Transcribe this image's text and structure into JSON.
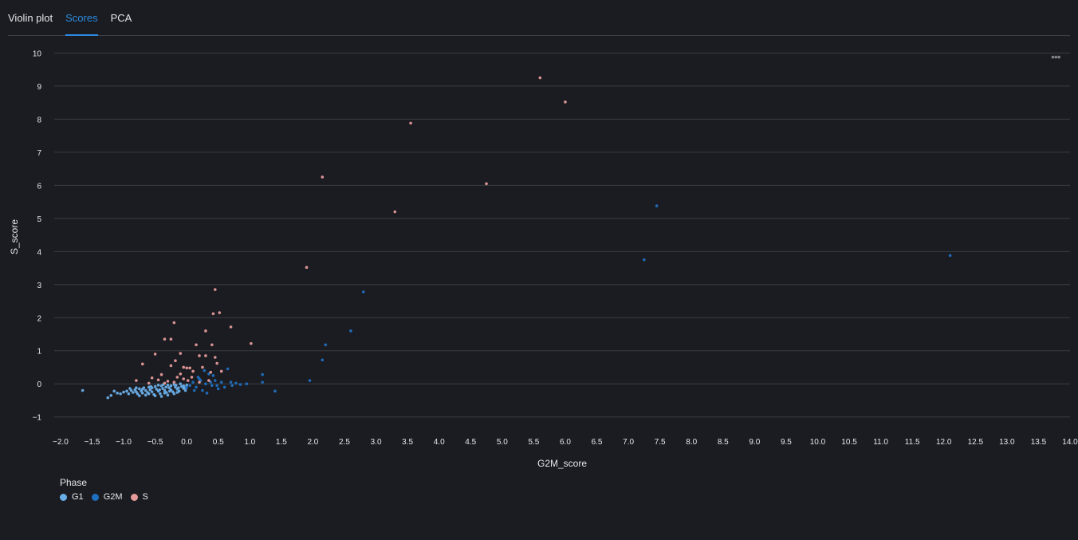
{
  "tabs": [
    {
      "label": "Violin plot",
      "active": false
    },
    {
      "label": "Scores",
      "active": true
    },
    {
      "label": "PCA",
      "active": false
    }
  ],
  "menu_icon": "more-horizontal-icon",
  "colors": {
    "background": "#1b1c21",
    "active_tab": "#2b8be0",
    "grid": "#3a3c44"
  },
  "chart_data": {
    "type": "scatter",
    "title": "",
    "xlabel": "G2M_score",
    "ylabel": "S_score",
    "xlim": [
      -2.1,
      14.0
    ],
    "ylim": [
      -1.2,
      10.3
    ],
    "x_ticks": [
      "−2.0",
      "−1.5",
      "−1.0",
      "−0.5",
      "0.0",
      "0.5",
      "1.0",
      "1.5",
      "2.0",
      "2.5",
      "3.0",
      "3.5",
      "4.0",
      "4.5",
      "5.0",
      "5.5",
      "6.0",
      "6.5",
      "7.0",
      "7.5",
      "8.0",
      "8.5",
      "9.0",
      "9.5",
      "10.0",
      "10.5",
      "11.0",
      "11.5",
      "12.0",
      "12.5",
      "13.0",
      "13.5",
      "14.0"
    ],
    "y_ticks": [
      "−1",
      "0",
      "1",
      "2",
      "3",
      "4",
      "5",
      "6",
      "7",
      "8",
      "9",
      "10"
    ],
    "grid": true,
    "legend_title": "Phase",
    "legend_position": "bottom-left",
    "series": [
      {
        "name": "G1",
        "color": "#6aaee8",
        "points": [
          [
            -1.65,
            -0.2
          ],
          [
            -1.25,
            -0.42
          ],
          [
            -1.2,
            -0.35
          ],
          [
            -1.1,
            -0.28
          ],
          [
            -1.05,
            -0.3
          ],
          [
            -1.0,
            -0.25
          ],
          [
            -0.95,
            -0.22
          ],
          [
            -0.92,
            -0.3
          ],
          [
            -0.88,
            -0.2
          ],
          [
            -0.85,
            -0.26
          ],
          [
            -0.82,
            -0.18
          ],
          [
            -0.8,
            -0.24
          ],
          [
            -0.78,
            -0.3
          ],
          [
            -0.75,
            -0.15
          ],
          [
            -0.72,
            -0.22
          ],
          [
            -0.7,
            -0.28
          ],
          [
            -0.68,
            -0.12
          ],
          [
            -0.65,
            -0.2
          ],
          [
            -0.62,
            -0.26
          ],
          [
            -0.6,
            -0.1
          ],
          [
            -0.58,
            -0.18
          ],
          [
            -0.55,
            -0.24
          ],
          [
            -0.52,
            -0.32
          ],
          [
            -0.5,
            -0.08
          ],
          [
            -0.48,
            -0.16
          ],
          [
            -0.45,
            -0.22
          ],
          [
            -0.42,
            -0.3
          ],
          [
            -0.4,
            -0.06
          ],
          [
            -0.38,
            -0.14
          ],
          [
            -0.35,
            -0.2
          ],
          [
            -0.32,
            -0.26
          ],
          [
            -0.3,
            -0.04
          ],
          [
            -0.28,
            -0.12
          ],
          [
            -0.25,
            -0.18
          ],
          [
            -0.22,
            -0.24
          ],
          [
            -0.2,
            -0.02
          ],
          [
            -0.18,
            -0.1
          ],
          [
            -0.15,
            -0.16
          ],
          [
            -0.12,
            -0.22
          ],
          [
            -0.1,
            0.0
          ],
          [
            -0.08,
            -0.08
          ],
          [
            -0.05,
            -0.14
          ],
          [
            -0.02,
            -0.2
          ],
          [
            0.0,
            -0.04
          ],
          [
            -0.6,
            -0.3
          ],
          [
            -0.55,
            -0.12
          ],
          [
            -0.45,
            -0.04
          ],
          [
            -0.35,
            -0.28
          ],
          [
            -0.25,
            -0.06
          ],
          [
            -0.15,
            -0.26
          ],
          [
            -0.05,
            -0.06
          ],
          [
            -0.4,
            -0.38
          ],
          [
            -0.3,
            -0.34
          ],
          [
            -0.2,
            -0.3
          ],
          [
            -0.5,
            -0.36
          ],
          [
            -0.65,
            -0.34
          ],
          [
            -0.7,
            -0.16
          ],
          [
            -0.8,
            -0.12
          ],
          [
            -0.9,
            -0.14
          ],
          [
            -1.15,
            -0.22
          ],
          [
            -0.75,
            -0.36
          ],
          [
            -0.33,
            -0.1
          ],
          [
            -0.27,
            -0.22
          ],
          [
            -0.13,
            -0.12
          ],
          [
            -0.43,
            -0.18
          ],
          [
            -0.57,
            -0.08
          ],
          [
            -0.37,
            -0.02
          ],
          [
            -0.17,
            -0.04
          ],
          [
            -0.03,
            -0.12
          ]
        ]
      },
      {
        "name": "G2M",
        "color": "#1f6fbf",
        "points": [
          [
            0.05,
            -0.05
          ],
          [
            0.1,
            0.05
          ],
          [
            0.15,
            -0.1
          ],
          [
            0.2,
            0.15
          ],
          [
            0.25,
            -0.2
          ],
          [
            0.3,
            0.0
          ],
          [
            0.35,
            0.3
          ],
          [
            0.4,
            -0.05
          ],
          [
            0.45,
            0.1
          ],
          [
            0.5,
            -0.15
          ],
          [
            0.55,
            0.05
          ],
          [
            0.6,
            -0.1
          ],
          [
            0.65,
            0.45
          ],
          [
            0.7,
            0.05
          ],
          [
            0.72,
            -0.05
          ],
          [
            0.78,
            0.02
          ],
          [
            0.85,
            -0.02
          ],
          [
            0.95,
            0.0
          ],
          [
            1.2,
            0.05
          ],
          [
            1.2,
            0.28
          ],
          [
            1.4,
            -0.22
          ],
          [
            0.0,
            -0.12
          ],
          [
            0.12,
            -0.2
          ],
          [
            0.22,
            0.1
          ],
          [
            0.32,
            -0.28
          ],
          [
            0.42,
            0.25
          ],
          [
            0.48,
            -0.05
          ],
          [
            0.28,
            0.4
          ],
          [
            0.18,
            0.2
          ],
          [
            0.38,
            0.05
          ],
          [
            1.95,
            0.1
          ],
          [
            2.15,
            0.72
          ],
          [
            2.2,
            1.18
          ],
          [
            2.6,
            1.6
          ],
          [
            2.8,
            2.78
          ],
          [
            7.25,
            3.75
          ],
          [
            7.45,
            5.38
          ],
          [
            12.1,
            3.88
          ]
        ]
      },
      {
        "name": "S",
        "color": "#e59a9a",
        "points": [
          [
            -0.7,
            0.6
          ],
          [
            -0.5,
            0.9
          ],
          [
            -0.35,
            1.35
          ],
          [
            -0.25,
            1.35
          ],
          [
            -0.2,
            1.85
          ],
          [
            -0.1,
            0.92
          ],
          [
            -0.05,
            0.5
          ],
          [
            0.0,
            0.48
          ],
          [
            0.05,
            0.48
          ],
          [
            0.15,
            1.18
          ],
          [
            0.2,
            0.85
          ],
          [
            0.25,
            0.5
          ],
          [
            0.3,
            1.6
          ],
          [
            0.3,
            0.85
          ],
          [
            0.38,
            0.35
          ],
          [
            0.4,
            1.18
          ],
          [
            0.42,
            2.12
          ],
          [
            0.45,
            2.85
          ],
          [
            0.45,
            0.8
          ],
          [
            0.48,
            0.62
          ],
          [
            0.52,
            2.15
          ],
          [
            0.55,
            0.38
          ],
          [
            0.7,
            1.72
          ],
          [
            1.02,
            1.22
          ],
          [
            -0.8,
            0.1
          ],
          [
            -0.6,
            0.02
          ],
          [
            -0.45,
            0.12
          ],
          [
            -0.3,
            0.08
          ],
          [
            -0.15,
            0.2
          ],
          [
            -0.05,
            0.15
          ],
          [
            0.08,
            0.2
          ],
          [
            -0.2,
            0.05
          ],
          [
            -0.1,
            0.3
          ],
          [
            0.1,
            0.38
          ],
          [
            -0.25,
            0.55
          ],
          [
            -0.4,
            0.28
          ],
          [
            -0.18,
            0.7
          ],
          [
            0.02,
            0.1
          ],
          [
            -0.55,
            0.18
          ],
          [
            -0.35,
            0.02
          ],
          [
            0.35,
            0.1
          ],
          [
            0.2,
            0.05
          ],
          [
            1.9,
            3.52
          ],
          [
            2.15,
            6.25
          ],
          [
            3.3,
            5.2
          ],
          [
            3.55,
            7.88
          ],
          [
            4.75,
            6.05
          ],
          [
            5.6,
            9.25
          ],
          [
            6.0,
            8.52
          ]
        ]
      }
    ]
  }
}
